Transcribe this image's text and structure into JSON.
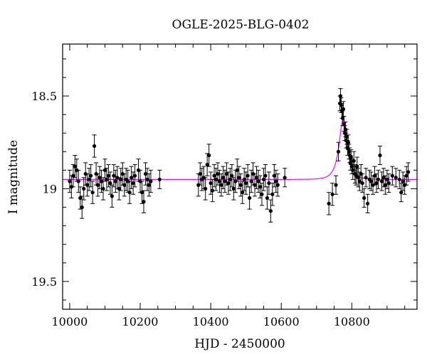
{
  "chart_data": {
    "type": "scatter",
    "title": "OGLE-2025-BLG-0402",
    "xlabel": "HJD - 2450000",
    "ylabel": "I magnitude",
    "xlim": [
      9980,
      10985
    ],
    "ylim": [
      19.65,
      18.22
    ],
    "y_inverted": true,
    "x_ticks": [
      10000,
      10200,
      10400,
      10600,
      10800
    ],
    "y_ticks": [
      18.5,
      19,
      19.5
    ],
    "grid": false,
    "colors": {
      "points": "#000000",
      "model": "#ff00ff",
      "axes": "#000000"
    },
    "model_curve": {
      "name": "",
      "description": "point-lens microlensing fit",
      "baseline_mag": 18.95,
      "peak_mag": 18.63,
      "t0": 10775,
      "tE": 22,
      "u0": 0.5
    },
    "series": [
      {
        "name": "",
        "points": [
          {
            "x": 10000,
            "y": 18.96,
            "err": 0.06
          },
          {
            "x": 10005,
            "y": 18.99,
            "err": 0.06
          },
          {
            "x": 10010,
            "y": 18.93,
            "err": 0.06
          },
          {
            "x": 10015,
            "y": 18.88,
            "err": 0.06
          },
          {
            "x": 10020,
            "y": 18.9,
            "err": 0.06
          },
          {
            "x": 10025,
            "y": 18.96,
            "err": 0.06
          },
          {
            "x": 10030,
            "y": 19.05,
            "err": 0.06
          },
          {
            "x": 10035,
            "y": 19.1,
            "err": 0.06
          },
          {
            "x": 10040,
            "y": 19.0,
            "err": 0.06
          },
          {
            "x": 10045,
            "y": 18.92,
            "err": 0.06
          },
          {
            "x": 10050,
            "y": 18.98,
            "err": 0.06
          },
          {
            "x": 10055,
            "y": 18.95,
            "err": 0.06
          },
          {
            "x": 10060,
            "y": 18.93,
            "err": 0.06
          },
          {
            "x": 10065,
            "y": 19.02,
            "err": 0.06
          },
          {
            "x": 10070,
            "y": 18.77,
            "err": 0.06
          },
          {
            "x": 10075,
            "y": 18.92,
            "err": 0.06
          },
          {
            "x": 10080,
            "y": 18.98,
            "err": 0.06
          },
          {
            "x": 10085,
            "y": 18.94,
            "err": 0.06
          },
          {
            "x": 10090,
            "y": 18.96,
            "err": 0.06
          },
          {
            "x": 10095,
            "y": 19.0,
            "err": 0.06
          },
          {
            "x": 10100,
            "y": 18.9,
            "err": 0.06
          },
          {
            "x": 10105,
            "y": 18.95,
            "err": 0.06
          },
          {
            "x": 10110,
            "y": 18.93,
            "err": 0.06
          },
          {
            "x": 10115,
            "y": 18.97,
            "err": 0.06
          },
          {
            "x": 10120,
            "y": 19.04,
            "err": 0.06
          },
          {
            "x": 10125,
            "y": 18.93,
            "err": 0.06
          },
          {
            "x": 10130,
            "y": 18.96,
            "err": 0.06
          },
          {
            "x": 10135,
            "y": 18.94,
            "err": 0.06
          },
          {
            "x": 10140,
            "y": 19.0,
            "err": 0.06
          },
          {
            "x": 10145,
            "y": 18.95,
            "err": 0.06
          },
          {
            "x": 10150,
            "y": 18.92,
            "err": 0.06
          },
          {
            "x": 10155,
            "y": 18.98,
            "err": 0.06
          },
          {
            "x": 10160,
            "y": 18.95,
            "err": 0.06
          },
          {
            "x": 10165,
            "y": 18.96,
            "err": 0.06
          },
          {
            "x": 10170,
            "y": 19.02,
            "err": 0.06
          },
          {
            "x": 10175,
            "y": 18.94,
            "err": 0.06
          },
          {
            "x": 10180,
            "y": 18.97,
            "err": 0.06
          },
          {
            "x": 10185,
            "y": 18.93,
            "err": 0.06
          },
          {
            "x": 10195,
            "y": 18.9,
            "err": 0.06
          },
          {
            "x": 10200,
            "y": 18.96,
            "err": 0.06
          },
          {
            "x": 10205,
            "y": 19.02,
            "err": 0.06
          },
          {
            "x": 10210,
            "y": 19.07,
            "err": 0.06
          },
          {
            "x": 10215,
            "y": 18.92,
            "err": 0.06
          },
          {
            "x": 10220,
            "y": 18.95,
            "err": 0.06
          },
          {
            "x": 10225,
            "y": 18.98,
            "err": 0.06
          },
          {
            "x": 10230,
            "y": 18.96,
            "err": 0.06
          },
          {
            "x": 10255,
            "y": 18.95,
            "err": 0.05
          },
          {
            "x": 10365,
            "y": 18.98,
            "err": 0.06
          },
          {
            "x": 10370,
            "y": 18.92,
            "err": 0.06
          },
          {
            "x": 10375,
            "y": 18.95,
            "err": 0.06
          },
          {
            "x": 10380,
            "y": 18.94,
            "err": 0.06
          },
          {
            "x": 10385,
            "y": 19.0,
            "err": 0.06
          },
          {
            "x": 10390,
            "y": 18.87,
            "err": 0.06
          },
          {
            "x": 10395,
            "y": 18.82,
            "err": 0.06
          },
          {
            "x": 10400,
            "y": 18.97,
            "err": 0.06
          },
          {
            "x": 10405,
            "y": 19.01,
            "err": 0.06
          },
          {
            "x": 10410,
            "y": 18.93,
            "err": 0.06
          },
          {
            "x": 10415,
            "y": 18.95,
            "err": 0.06
          },
          {
            "x": 10420,
            "y": 18.92,
            "err": 0.06
          },
          {
            "x": 10425,
            "y": 18.96,
            "err": 0.06
          },
          {
            "x": 10430,
            "y": 18.98,
            "err": 0.06
          },
          {
            "x": 10435,
            "y": 18.94,
            "err": 0.06
          },
          {
            "x": 10440,
            "y": 18.96,
            "err": 0.06
          },
          {
            "x": 10445,
            "y": 18.92,
            "err": 0.06
          },
          {
            "x": 10450,
            "y": 18.97,
            "err": 0.06
          },
          {
            "x": 10455,
            "y": 18.95,
            "err": 0.06
          },
          {
            "x": 10460,
            "y": 18.93,
            "err": 0.06
          },
          {
            "x": 10465,
            "y": 19.0,
            "err": 0.06
          },
          {
            "x": 10470,
            "y": 18.96,
            "err": 0.06
          },
          {
            "x": 10475,
            "y": 18.9,
            "err": 0.06
          },
          {
            "x": 10480,
            "y": 18.94,
            "err": 0.06
          },
          {
            "x": 10485,
            "y": 18.98,
            "err": 0.06
          },
          {
            "x": 10490,
            "y": 19.02,
            "err": 0.06
          },
          {
            "x": 10495,
            "y": 18.95,
            "err": 0.06
          },
          {
            "x": 10500,
            "y": 18.97,
            "err": 0.06
          },
          {
            "x": 10505,
            "y": 18.93,
            "err": 0.06
          },
          {
            "x": 10510,
            "y": 19.05,
            "err": 0.06
          },
          {
            "x": 10515,
            "y": 18.96,
            "err": 0.06
          },
          {
            "x": 10520,
            "y": 18.92,
            "err": 0.06
          },
          {
            "x": 10525,
            "y": 18.98,
            "err": 0.06
          },
          {
            "x": 10530,
            "y": 18.94,
            "err": 0.06
          },
          {
            "x": 10535,
            "y": 18.96,
            "err": 0.06
          },
          {
            "x": 10540,
            "y": 18.99,
            "err": 0.06
          },
          {
            "x": 10545,
            "y": 19.03,
            "err": 0.06
          },
          {
            "x": 10550,
            "y": 18.95,
            "err": 0.06
          },
          {
            "x": 10555,
            "y": 18.93,
            "err": 0.06
          },
          {
            "x": 10560,
            "y": 19.05,
            "err": 0.06
          },
          {
            "x": 10565,
            "y": 18.97,
            "err": 0.06
          },
          {
            "x": 10570,
            "y": 19.12,
            "err": 0.06
          },
          {
            "x": 10575,
            "y": 19.03,
            "err": 0.06
          },
          {
            "x": 10580,
            "y": 18.93,
            "err": 0.06
          },
          {
            "x": 10585,
            "y": 18.96,
            "err": 0.06
          },
          {
            "x": 10590,
            "y": 18.98,
            "err": 0.06
          },
          {
            "x": 10610,
            "y": 18.94,
            "err": 0.05
          },
          {
            "x": 10735,
            "y": 19.08,
            "err": 0.06
          },
          {
            "x": 10745,
            "y": 19.03,
            "err": 0.06
          },
          {
            "x": 10755,
            "y": 18.98,
            "err": 0.05
          },
          {
            "x": 10762,
            "y": 18.8,
            "err": 0.05
          },
          {
            "x": 10766,
            "y": 18.54,
            "err": 0.04
          },
          {
            "x": 10768,
            "y": 18.5,
            "err": 0.04
          },
          {
            "x": 10770,
            "y": 18.55,
            "err": 0.04
          },
          {
            "x": 10772,
            "y": 18.58,
            "err": 0.04
          },
          {
            "x": 10774,
            "y": 18.62,
            "err": 0.04
          },
          {
            "x": 10776,
            "y": 18.57,
            "err": 0.04
          },
          {
            "x": 10778,
            "y": 18.65,
            "err": 0.04
          },
          {
            "x": 10780,
            "y": 18.7,
            "err": 0.04
          },
          {
            "x": 10782,
            "y": 18.68,
            "err": 0.04
          },
          {
            "x": 10784,
            "y": 18.74,
            "err": 0.04
          },
          {
            "x": 10786,
            "y": 18.72,
            "err": 0.04
          },
          {
            "x": 10788,
            "y": 18.78,
            "err": 0.04
          },
          {
            "x": 10790,
            "y": 18.75,
            "err": 0.04
          },
          {
            "x": 10792,
            "y": 18.8,
            "err": 0.04
          },
          {
            "x": 10794,
            "y": 18.82,
            "err": 0.04
          },
          {
            "x": 10796,
            "y": 18.86,
            "err": 0.04
          },
          {
            "x": 10798,
            "y": 18.83,
            "err": 0.04
          },
          {
            "x": 10800,
            "y": 18.88,
            "err": 0.04
          },
          {
            "x": 10803,
            "y": 18.9,
            "err": 0.05
          },
          {
            "x": 10806,
            "y": 18.85,
            "err": 0.05
          },
          {
            "x": 10809,
            "y": 18.92,
            "err": 0.05
          },
          {
            "x": 10812,
            "y": 18.93,
            "err": 0.05
          },
          {
            "x": 10815,
            "y": 18.88,
            "err": 0.05
          },
          {
            "x": 10818,
            "y": 18.94,
            "err": 0.05
          },
          {
            "x": 10822,
            "y": 18.96,
            "err": 0.05
          },
          {
            "x": 10826,
            "y": 18.92,
            "err": 0.05
          },
          {
            "x": 10830,
            "y": 18.97,
            "err": 0.05
          },
          {
            "x": 10835,
            "y": 19.05,
            "err": 0.05
          },
          {
            "x": 10840,
            "y": 18.94,
            "err": 0.05
          },
          {
            "x": 10845,
            "y": 19.08,
            "err": 0.05
          },
          {
            "x": 10850,
            "y": 18.95,
            "err": 0.05
          },
          {
            "x": 10855,
            "y": 18.96,
            "err": 0.05
          },
          {
            "x": 10860,
            "y": 18.98,
            "err": 0.05
          },
          {
            "x": 10865,
            "y": 18.93,
            "err": 0.05
          },
          {
            "x": 10870,
            "y": 18.97,
            "err": 0.05
          },
          {
            "x": 10875,
            "y": 18.95,
            "err": 0.05
          },
          {
            "x": 10880,
            "y": 18.82,
            "err": 0.05
          },
          {
            "x": 10885,
            "y": 18.96,
            "err": 0.05
          },
          {
            "x": 10890,
            "y": 18.94,
            "err": 0.05
          },
          {
            "x": 10895,
            "y": 18.98,
            "err": 0.05
          },
          {
            "x": 10900,
            "y": 18.95,
            "err": 0.05
          },
          {
            "x": 10905,
            "y": 18.97,
            "err": 0.05
          },
          {
            "x": 10915,
            "y": 18.93,
            "err": 0.05
          },
          {
            "x": 10925,
            "y": 18.94,
            "err": 0.05
          },
          {
            "x": 10935,
            "y": 18.95,
            "err": 0.05
          },
          {
            "x": 10940,
            "y": 19.02,
            "err": 0.05
          },
          {
            "x": 10945,
            "y": 18.96,
            "err": 0.05
          },
          {
            "x": 10950,
            "y": 18.98,
            "err": 0.05
          },
          {
            "x": 10955,
            "y": 18.93,
            "err": 0.05
          },
          {
            "x": 10960,
            "y": 18.91,
            "err": 0.05
          }
        ]
      }
    ]
  }
}
